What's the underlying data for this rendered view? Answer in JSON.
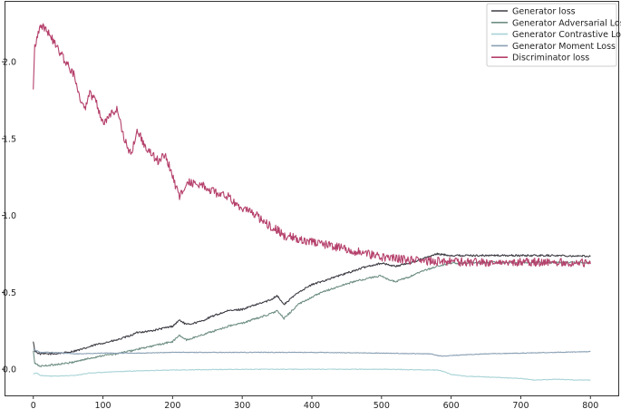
{
  "chart_data": {
    "type": "line",
    "title": "",
    "xlabel": "",
    "ylabel": "",
    "xlim": [
      -40,
      840
    ],
    "ylim": [
      -0.17,
      2.39
    ],
    "xticks": [
      0,
      100,
      200,
      300,
      400,
      500,
      600,
      700,
      800
    ],
    "yticks": [
      0.0,
      0.5,
      1.0,
      1.5,
      2.0
    ],
    "xtick_labels": [
      "0",
      "100",
      "200",
      "300",
      "400",
      "500",
      "600",
      "700",
      "800"
    ],
    "ytick_labels": [
      "0.0",
      "0.5",
      "1.0",
      "1.5",
      "2.0"
    ],
    "grid": false,
    "legend_position": "top-right",
    "series": [
      {
        "name": "Generator loss",
        "color": "#3d3d45",
        "noise": 0.006,
        "x": [
          0,
          2,
          5,
          10,
          30,
          50,
          70,
          90,
          100,
          120,
          140,
          150,
          170,
          200,
          210,
          220,
          240,
          260,
          280,
          300,
          320,
          340,
          350,
          360,
          380,
          400,
          420,
          440,
          460,
          480,
          500,
          510,
          520,
          540,
          560,
          580,
          600,
          650,
          700,
          750,
          800
        ],
        "y": [
          0.18,
          0.12,
          0.11,
          0.1,
          0.1,
          0.11,
          0.13,
          0.16,
          0.17,
          0.19,
          0.22,
          0.24,
          0.25,
          0.28,
          0.32,
          0.29,
          0.31,
          0.35,
          0.38,
          0.39,
          0.42,
          0.45,
          0.48,
          0.42,
          0.5,
          0.55,
          0.58,
          0.61,
          0.64,
          0.67,
          0.69,
          0.68,
          0.67,
          0.69,
          0.72,
          0.75,
          0.74,
          0.74,
          0.74,
          0.74,
          0.735
        ]
      },
      {
        "name": "Generator Adversarial Loss",
        "color": "#6f8f84",
        "noise": 0.006,
        "x": [
          0,
          2,
          5,
          10,
          30,
          50,
          70,
          90,
          100,
          120,
          140,
          150,
          170,
          200,
          210,
          220,
          240,
          260,
          280,
          300,
          320,
          340,
          350,
          360,
          380,
          400,
          420,
          440,
          460,
          480,
          500,
          510,
          520,
          540,
          560,
          580,
          600,
          650,
          700,
          750,
          800
        ],
        "y": [
          0.12,
          0.04,
          0.03,
          0.02,
          0.03,
          0.04,
          0.06,
          0.08,
          0.09,
          0.1,
          0.12,
          0.13,
          0.15,
          0.18,
          0.22,
          0.19,
          0.22,
          0.25,
          0.28,
          0.3,
          0.33,
          0.36,
          0.38,
          0.33,
          0.42,
          0.47,
          0.51,
          0.54,
          0.57,
          0.59,
          0.61,
          0.58,
          0.57,
          0.6,
          0.64,
          0.67,
          0.69,
          0.695,
          0.695,
          0.695,
          0.695
        ]
      },
      {
        "name": "Generator Contrastive Loss",
        "color": "#a8d3d6",
        "noise": 0.002,
        "x": [
          0,
          5,
          10,
          30,
          60,
          80,
          100,
          150,
          200,
          300,
          400,
          500,
          580,
          590,
          600,
          620,
          650,
          700,
          720,
          750,
          780,
          800
        ],
        "y": [
          -0.03,
          -0.025,
          -0.04,
          -0.045,
          -0.04,
          -0.025,
          -0.02,
          -0.01,
          -0.005,
          0.0,
          0.0,
          0.0,
          -0.005,
          -0.015,
          -0.035,
          -0.045,
          -0.05,
          -0.06,
          -0.07,
          -0.065,
          -0.07,
          -0.07
        ]
      },
      {
        "name": "Generator Moment Loss",
        "color": "#8aa0b4",
        "noise": 0.002,
        "x": [
          0,
          5,
          10,
          30,
          60,
          100,
          150,
          200,
          300,
          400,
          500,
          570,
          580,
          590,
          600,
          650,
          700,
          750,
          800
        ],
        "y": [
          0.13,
          0.12,
          0.11,
          0.11,
          0.1,
          0.105,
          0.105,
          0.11,
          0.11,
          0.11,
          0.105,
          0.1,
          0.09,
          0.085,
          0.09,
          0.1,
          0.105,
          0.11,
          0.115
        ]
      },
      {
        "name": "Discriminator loss",
        "color": "#b5406b",
        "noise": 0.028,
        "x": [
          0,
          2,
          5,
          10,
          20,
          40,
          60,
          70,
          75,
          80,
          90,
          100,
          110,
          120,
          130,
          140,
          150,
          155,
          160,
          170,
          180,
          190,
          200,
          210,
          220,
          240,
          260,
          280,
          300,
          320,
          340,
          350,
          360,
          380,
          400,
          420,
          440,
          460,
          480,
          500,
          520,
          540,
          560,
          600,
          650,
          700,
          750,
          800
        ],
        "y": [
          1.82,
          2.1,
          2.15,
          2.25,
          2.2,
          2.05,
          1.9,
          1.72,
          1.7,
          1.8,
          1.75,
          1.6,
          1.65,
          1.7,
          1.5,
          1.4,
          1.55,
          1.5,
          1.45,
          1.4,
          1.35,
          1.4,
          1.25,
          1.12,
          1.22,
          1.2,
          1.15,
          1.12,
          1.05,
          1.0,
          0.93,
          0.91,
          0.87,
          0.85,
          0.83,
          0.81,
          0.79,
          0.77,
          0.75,
          0.73,
          0.72,
          0.71,
          0.705,
          0.7,
          0.695,
          0.695,
          0.695,
          0.695
        ]
      }
    ]
  }
}
